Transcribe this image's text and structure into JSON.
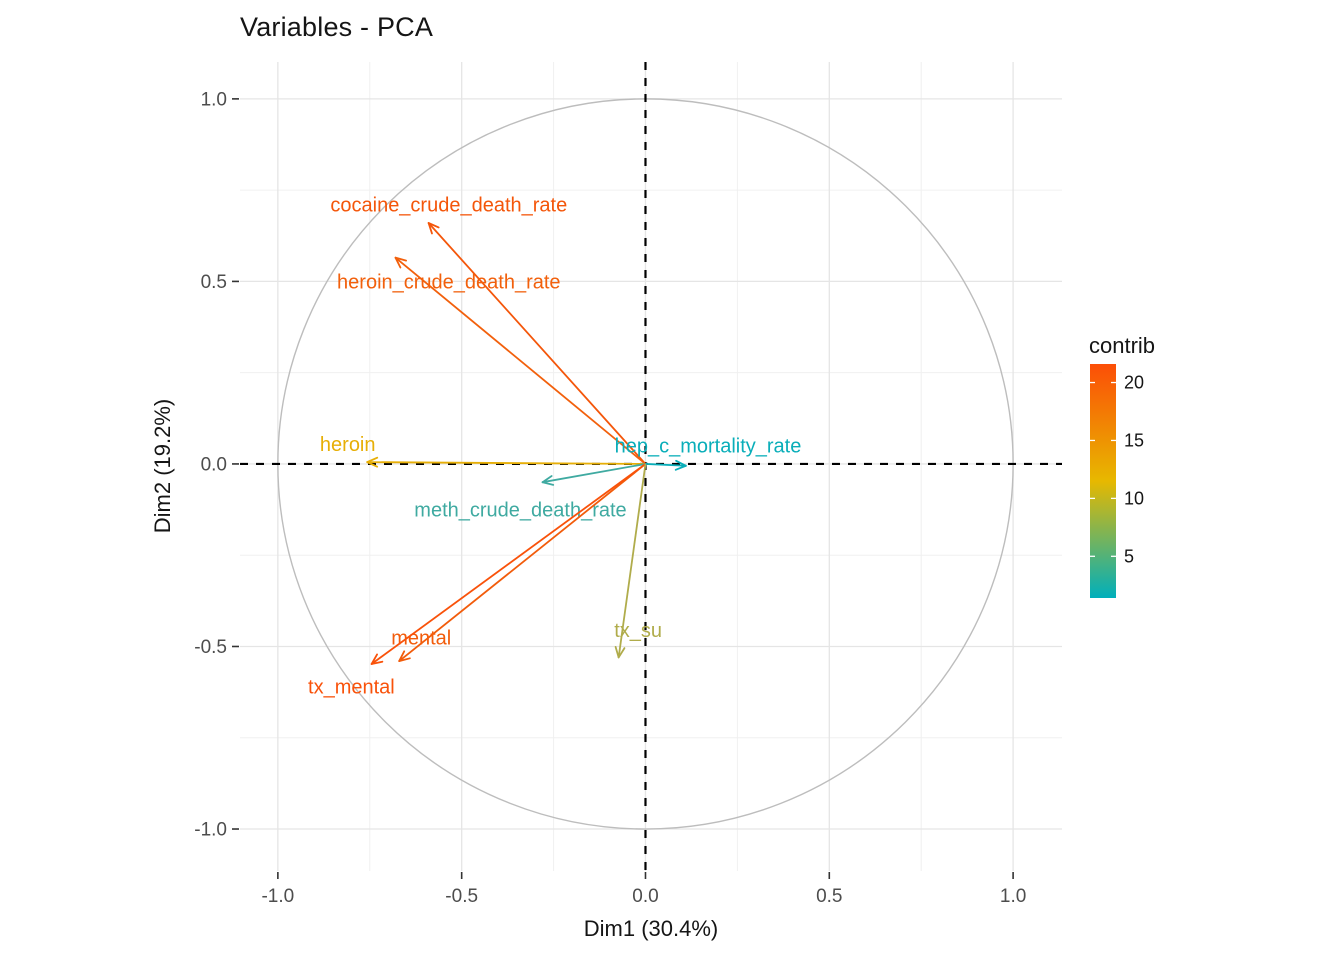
{
  "chart": {
    "title": "Variables - PCA",
    "x_axis": {
      "label": "Dim1 (30.4%)",
      "tick_values": [
        -1.0,
        -0.5,
        0.0,
        0.5,
        1.0
      ],
      "tick_labels": [
        "-1.0",
        "-0.5",
        "0.0",
        "0.5",
        "1.0"
      ],
      "minor_tick_values": [
        -0.75,
        -0.25,
        0.25,
        0.75
      ]
    },
    "y_axis": {
      "label": "Dim2 (19.2%)",
      "tick_values": [
        -1.0,
        -0.5,
        0.0,
        0.5,
        1.0
      ],
      "tick_labels": [
        "-1.0",
        "-0.5",
        "0.0",
        "0.5",
        "1.0"
      ],
      "minor_tick_values": [
        -0.75,
        -0.25,
        0.25,
        0.75
      ]
    },
    "legend": {
      "title": "contrib",
      "position": "right",
      "tick_values": [
        20,
        15,
        10,
        5
      ],
      "tick_labels": [
        "20",
        "15",
        "10",
        "5"
      ],
      "limits": [
        1.4,
        21.6
      ],
      "gradient_colors": [
        "#FC4E07",
        "#E7B800",
        "#00AFBB"
      ]
    }
  },
  "chart_data": {
    "type": "scatter",
    "subtype": "pca_variable_correlation_circle",
    "title": "Variables - PCA",
    "xlabel": "Dim1 (30.4%)",
    "ylabel": "Dim2 (19.2%)",
    "xlim": [
      -1.1,
      1.13
    ],
    "ylim": [
      -1.12,
      1.1
    ],
    "grid": true,
    "unit_circle": true,
    "zero_lines": "dashed",
    "color_scale": {
      "name": "contrib",
      "low": "#00AFBB",
      "mid": "#E7B800",
      "high": "#FC4E07"
    },
    "variables": [
      {
        "name": "cocaine_crude_death_rate",
        "x": -0.59,
        "y": 0.66,
        "contrib": 19,
        "color": "#F4560A",
        "label_x": -0.535,
        "label_y": 0.71
      },
      {
        "name": "heroin_crude_death_rate",
        "x": -0.68,
        "y": 0.565,
        "contrib": 18,
        "color": "#F2600C",
        "label_x": -0.535,
        "label_y": 0.5
      },
      {
        "name": "heroin",
        "x": -0.757,
        "y": 0.005,
        "contrib": 10.5,
        "color": "#E7AF07",
        "label_x": -0.81,
        "label_y": 0.055
      },
      {
        "name": "hep_c_mortality_rate",
        "x": 0.11,
        "y": -0.005,
        "contrib": 1.5,
        "color": "#09AEB9",
        "label_x": 0.17,
        "label_y": 0.05
      },
      {
        "name": "meth_crude_death_rate",
        "x": -0.28,
        "y": -0.05,
        "contrib": 3.5,
        "color": "#3FAAA1",
        "label_x": -0.34,
        "label_y": -0.125
      },
      {
        "name": "mental",
        "x": -0.67,
        "y": -0.54,
        "contrib": 17.5,
        "color": "#F25C0B",
        "label_x": -0.61,
        "label_y": -0.475
      },
      {
        "name": "tx_mental",
        "x": -0.745,
        "y": -0.548,
        "contrib": 20,
        "color": "#F9520A",
        "label_x": -0.8,
        "label_y": -0.61
      },
      {
        "name": "tx_su",
        "x": -0.073,
        "y": -0.53,
        "contrib": 6,
        "color": "#B0AC4B",
        "label_x": -0.02,
        "label_y": -0.455
      }
    ]
  }
}
